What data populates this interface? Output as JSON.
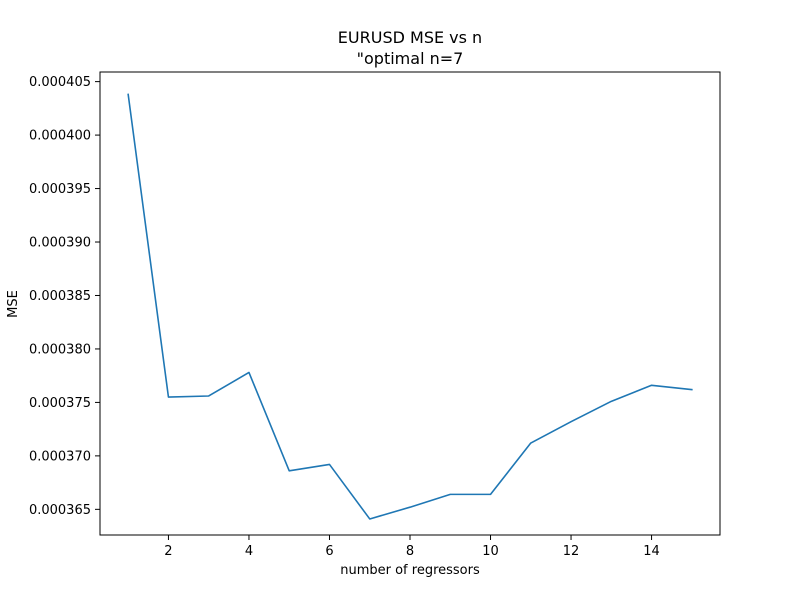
{
  "chart_data": {
    "type": "line",
    "title": "EURUSD MSE vs n",
    "subtitle": "\"optimal n=7",
    "xlabel": "number of regressors",
    "ylabel": "MSE",
    "xlim": [
      0.3,
      15.7
    ],
    "ylim": [
      0.0003626,
      0.0004059
    ],
    "x_ticks": [
      2,
      4,
      6,
      8,
      10,
      12,
      14
    ],
    "x_tick_labels": [
      "2",
      "4",
      "6",
      "8",
      "10",
      "12",
      "14"
    ],
    "y_ticks": [
      0.000365,
      0.00037,
      0.000375,
      0.00038,
      0.000385,
      0.00039,
      0.000395,
      0.0004,
      0.000405
    ],
    "y_tick_labels": [
      "0.000365",
      "0.000370",
      "0.000375",
      "0.000380",
      "0.000385",
      "0.000390",
      "0.000395",
      "0.000400",
      "0.000405"
    ],
    "grid": false,
    "series": [
      {
        "color": "#1f77b4",
        "x": [
          1,
          2,
          3,
          4,
          5,
          6,
          7,
          8,
          9,
          10,
          11,
          12,
          13,
          14,
          15
        ],
        "values": [
          0.0004038,
          0.0003755,
          0.0003756,
          0.0003778,
          0.0003686,
          0.0003692,
          0.0003641,
          0.0003652,
          0.0003664,
          0.0003664,
          0.0003712,
          0.0003732,
          0.0003751,
          0.0003766,
          0.0003762
        ]
      }
    ]
  }
}
